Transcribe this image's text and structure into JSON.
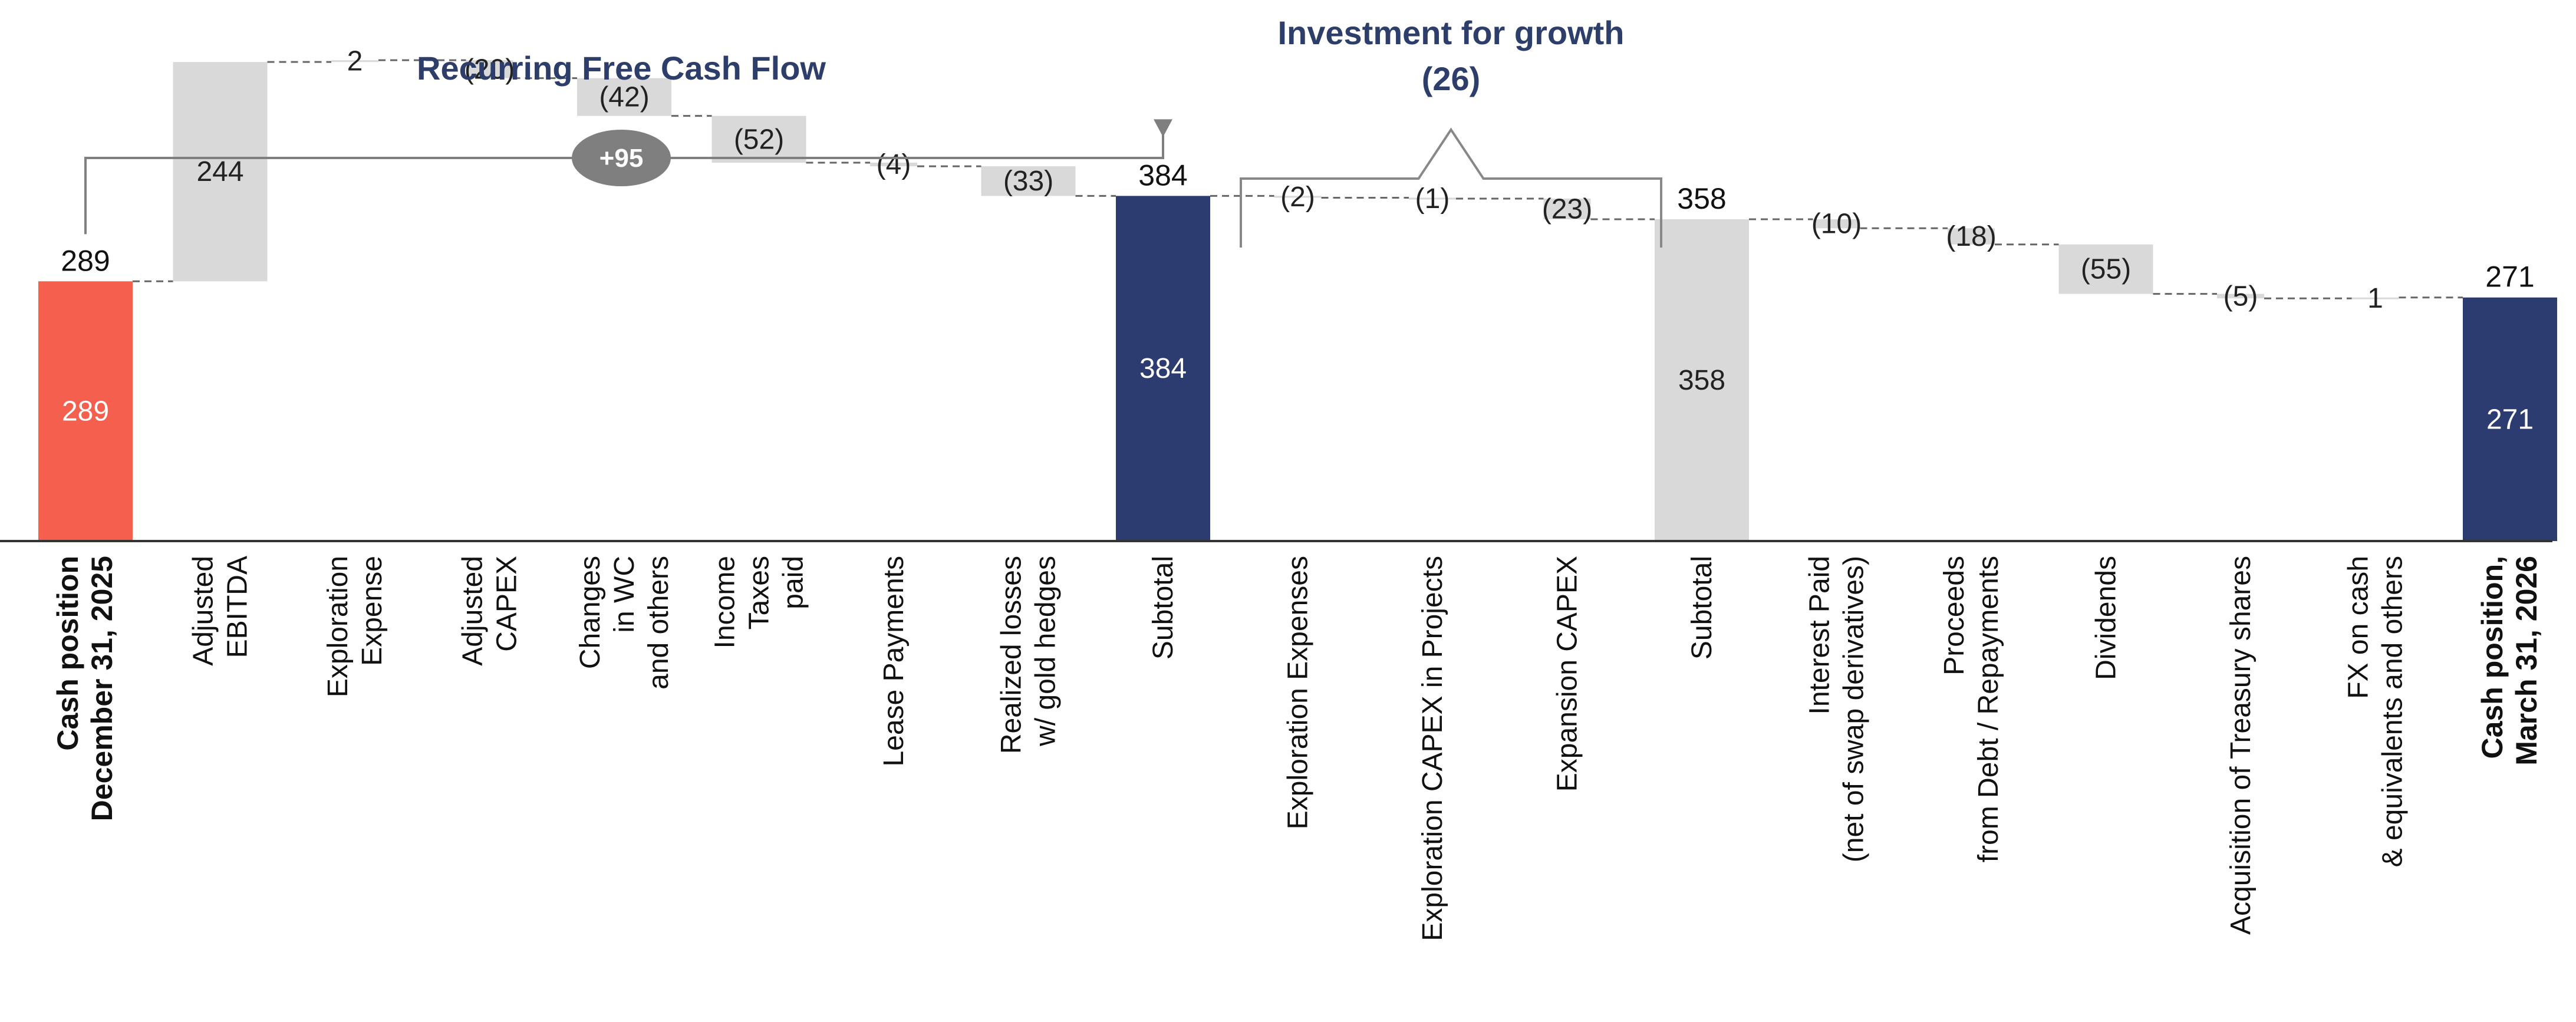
{
  "chart_data": {
    "type": "waterfall",
    "title": "",
    "ylim": [
      0,
      420
    ],
    "colors": {
      "start": "#f4604d",
      "subtotal_dark": "#2c3b70",
      "subtotal_light": "#d9d9d9",
      "delta": "#d9d9d9",
      "group_title": "#2d3e6b",
      "badge": "#7f7f7f",
      "connector": "#666666",
      "axis": "#333333"
    },
    "bars": [
      {
        "category_lines": [
          "Cash position",
          "December 31, 2025"
        ],
        "bold": true,
        "kind": "total",
        "value": 289,
        "top_label": "289",
        "inner_label": "289",
        "color_key": "start",
        "inner_light": true
      },
      {
        "category_lines": [
          "Adjusted",
          "EBITDA"
        ],
        "kind": "delta",
        "value": 244,
        "inner_label": "244",
        "color_key": "delta"
      },
      {
        "category_lines": [
          "Exploration",
          "Expense"
        ],
        "kind": "delta",
        "value": 2,
        "inner_label": "2",
        "color_key": "delta"
      },
      {
        "category_lines": [
          "Adjusted",
          "CAPEX"
        ],
        "kind": "delta",
        "value": -20,
        "inner_label": "(20)",
        "color_key": "delta"
      },
      {
        "category_lines": [
          "Changes",
          "in WC",
          "and others"
        ],
        "kind": "delta",
        "value": -42,
        "inner_label": "(42)",
        "color_key": "delta"
      },
      {
        "category_lines": [
          "Income",
          "Taxes",
          "paid"
        ],
        "kind": "delta",
        "value": -52,
        "inner_label": "(52)",
        "color_key": "delta"
      },
      {
        "category_lines": [
          "Lease Payments"
        ],
        "kind": "delta",
        "value": -4,
        "inner_label": "(4)",
        "color_key": "delta"
      },
      {
        "category_lines": [
          "Realized losses",
          "w/ gold hedges"
        ],
        "kind": "delta",
        "value": -33,
        "inner_label": "(33)",
        "color_key": "delta"
      },
      {
        "category_lines": [
          "Subtotal"
        ],
        "kind": "total",
        "value": 384,
        "top_label": "384",
        "inner_label": "384",
        "color_key": "subtotal_dark",
        "inner_light": true
      },
      {
        "category_lines": [
          "Exploration Expenses"
        ],
        "kind": "delta",
        "value": -2,
        "inner_label": "(2)",
        "color_key": "delta"
      },
      {
        "category_lines": [
          "Exploration CAPEX in Projects"
        ],
        "kind": "delta",
        "value": -1,
        "inner_label": "(1)",
        "color_key": "delta"
      },
      {
        "category_lines": [
          "Expansion CAPEX"
        ],
        "kind": "delta",
        "value": -23,
        "inner_label": "(23)",
        "color_key": "delta"
      },
      {
        "category_lines": [
          "Subtotal"
        ],
        "kind": "total",
        "value": 358,
        "top_label": "358",
        "inner_label": "358",
        "color_key": "subtotal_light",
        "inner_light": false
      },
      {
        "category_lines": [
          "Interest Paid",
          "(net of swap derivatives)"
        ],
        "kind": "delta",
        "value": -10,
        "inner_label": "(10)",
        "color_key": "delta"
      },
      {
        "category_lines": [
          "Proceeds",
          "from Debt / Repayments"
        ],
        "kind": "delta",
        "value": -18,
        "inner_label": "(18)",
        "color_key": "delta"
      },
      {
        "category_lines": [
          "Dividends"
        ],
        "kind": "delta",
        "value": -55,
        "inner_label": "(55)",
        "color_key": "delta"
      },
      {
        "category_lines": [
          "Acquisition of Treasury shares"
        ],
        "kind": "delta",
        "value": -5,
        "inner_label": "(5)",
        "color_key": "delta"
      },
      {
        "category_lines": [
          "FX on cash",
          "& equivalents and others"
        ],
        "kind": "delta",
        "value": 1,
        "inner_label": "1",
        "color_key": "delta"
      },
      {
        "category_lines": [
          "Cash position,",
          "March 31, 2026"
        ],
        "bold": true,
        "kind": "total",
        "value": 271,
        "top_label": "271",
        "inner_label": "271",
        "color_key": "subtotal_dark",
        "inner_light": true
      }
    ],
    "annotations": {
      "recurring": {
        "title": "Recurring Free Cash Flow",
        "badge": "+95",
        "from_bar": 0,
        "to_bar": 8
      },
      "investment": {
        "title_lines": [
          "Investment for growth",
          "(26)"
        ],
        "from_bar": 9,
        "to_bar": 11
      }
    }
  }
}
